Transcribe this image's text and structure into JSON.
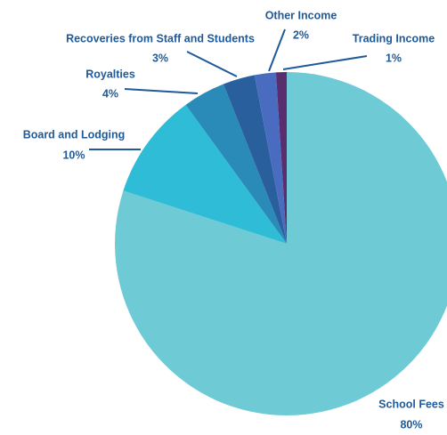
{
  "chart_data": {
    "type": "pie",
    "categories": [
      "School Fees",
      "Board and Lodging",
      "Royalties",
      "Recoveries from Staff and Students",
      "Other Income",
      "Trading Income"
    ],
    "values": [
      80,
      10,
      4,
      3,
      2,
      1
    ],
    "value_labels": [
      "80%",
      "10%",
      "4%",
      "3%",
      "2%",
      "1%"
    ],
    "colors": [
      "#6ecbd6",
      "#2fbcd6",
      "#2a8ab8",
      "#2a5f9e",
      "#4a6cc0",
      "#5a2d6e"
    ]
  }
}
